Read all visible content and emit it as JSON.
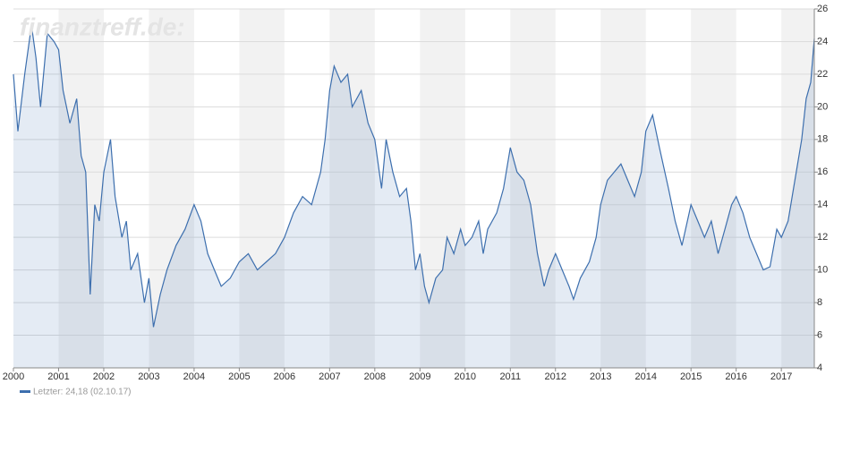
{
  "chart_data": {
    "type": "line",
    "watermark": "finanztreff.de:",
    "x": [
      2000.0,
      2000.1,
      2000.25,
      2000.4,
      2000.5,
      2000.6,
      2000.75,
      2000.9,
      2001.0,
      2001.1,
      2001.25,
      2001.4,
      2001.5,
      2001.6,
      2001.7,
      2001.8,
      2001.9,
      2002.0,
      2002.15,
      2002.25,
      2002.4,
      2002.5,
      2002.6,
      2002.75,
      2002.9,
      2003.0,
      2003.1,
      2003.25,
      2003.4,
      2003.6,
      2003.8,
      2004.0,
      2004.15,
      2004.3,
      2004.45,
      2004.6,
      2004.8,
      2005.0,
      2005.2,
      2005.4,
      2005.6,
      2005.8,
      2006.0,
      2006.2,
      2006.4,
      2006.6,
      2006.8,
      2006.9,
      2007.0,
      2007.1,
      2007.25,
      2007.4,
      2007.5,
      2007.7,
      2007.85,
      2008.0,
      2008.15,
      2008.25,
      2008.4,
      2008.55,
      2008.7,
      2008.8,
      2008.9,
      2009.0,
      2009.1,
      2009.2,
      2009.35,
      2009.5,
      2009.6,
      2009.75,
      2009.9,
      2010.0,
      2010.15,
      2010.3,
      2010.4,
      2010.5,
      2010.7,
      2010.85,
      2011.0,
      2011.15,
      2011.3,
      2011.45,
      2011.6,
      2011.75,
      2011.85,
      2012.0,
      2012.15,
      2012.3,
      2012.4,
      2012.55,
      2012.75,
      2012.9,
      2013.0,
      2013.15,
      2013.3,
      2013.45,
      2013.6,
      2013.75,
      2013.9,
      2014.0,
      2014.15,
      2014.3,
      2014.5,
      2014.65,
      2014.8,
      2015.0,
      2015.15,
      2015.3,
      2015.45,
      2015.6,
      2015.75,
      2015.9,
      2016.0,
      2016.15,
      2016.3,
      2016.45,
      2016.6,
      2016.75,
      2016.9,
      2017.0,
      2017.15,
      2017.3,
      2017.45,
      2017.55,
      2017.65,
      2017.73
    ],
    "series": [
      {
        "name": "Letzter: 24,18 (02.10.17)",
        "color": "#3d6fae",
        "values": [
          22,
          18.5,
          22,
          25,
          23,
          20,
          24.5,
          24,
          23.5,
          21,
          19,
          20.5,
          17,
          16,
          8.5,
          14,
          13,
          16,
          18,
          14.5,
          12,
          13,
          10,
          11,
          8,
          9.5,
          6.5,
          8.5,
          10,
          11.5,
          12.5,
          14,
          13,
          11,
          10,
          9,
          9.5,
          10.5,
          11,
          10,
          10.5,
          11,
          12,
          13.5,
          14.5,
          14,
          16,
          18,
          21,
          22.5,
          21.5,
          22,
          20,
          21,
          19,
          18,
          15,
          18,
          16,
          14.5,
          15,
          13,
          10,
          11,
          9,
          8,
          9.5,
          10,
          12,
          11,
          12.5,
          11.5,
          12,
          13,
          11,
          12.5,
          13.5,
          15,
          17.5,
          16,
          15.5,
          14,
          11,
          9,
          10,
          11,
          10,
          9,
          8.2,
          9.5,
          10.5,
          12,
          14,
          15.5,
          16,
          16.5,
          15.5,
          14.5,
          16,
          18.5,
          19.5,
          17.5,
          15,
          13,
          11.5,
          14,
          13,
          12,
          13,
          11,
          12.5,
          14,
          14.5,
          13.5,
          12,
          11,
          10,
          10.2,
          12.5,
          12,
          13,
          15.5,
          18,
          20.5,
          21.5,
          24.18
        ]
      }
    ],
    "xlim": [
      2000,
      2017.73
    ],
    "xticks": [
      2000,
      2001,
      2002,
      2003,
      2004,
      2005,
      2006,
      2007,
      2008,
      2009,
      2010,
      2011,
      2012,
      2013,
      2014,
      2015,
      2016,
      2017
    ],
    "ylim": [
      4,
      26
    ],
    "yticks": [
      4,
      6,
      8,
      10,
      12,
      14,
      16,
      18,
      20,
      22,
      24,
      26
    ],
    "grid": true
  }
}
